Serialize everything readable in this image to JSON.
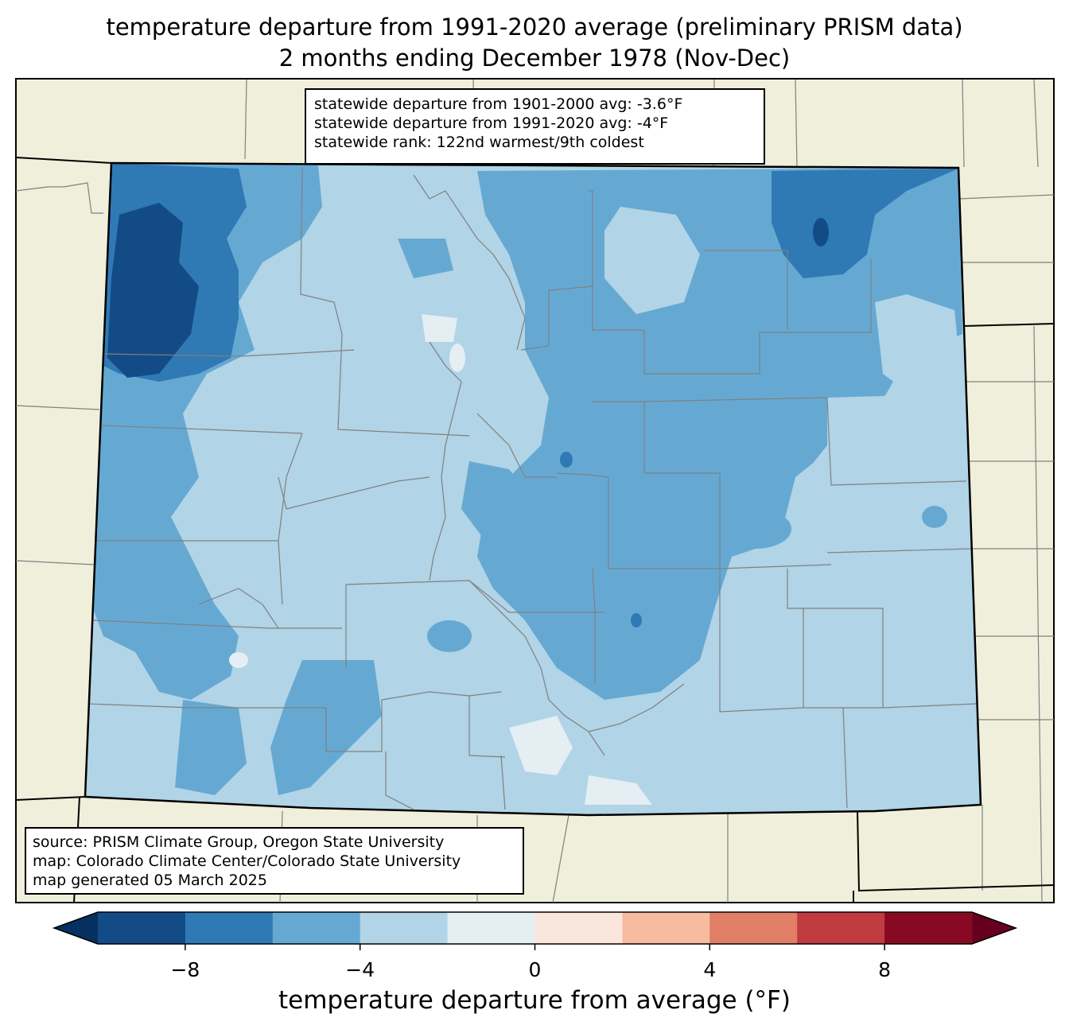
{
  "title": {
    "line1": "temperature departure from 1991-2020 average (preliminary PRISM data)",
    "line2": "2 months ending December 1978 (Nov-Dec)"
  },
  "stats": {
    "line1": "statewide departure from 1901-2000 avg: -3.6°F",
    "line2": "statewide departure from 1991-2020 avg: -4°F",
    "line3": "statewide rank: 122nd warmest/9th coldest"
  },
  "source": {
    "line1": "source: PRISM Climate Group, Oregon State University",
    "line2": "map: Colorado Climate Center/Colorado State University",
    "line3": "map generated 05 March 2025"
  },
  "colorbar": {
    "label": "temperature departure from average (°F)",
    "ticks": [
      "−8",
      "−4",
      "0",
      "4",
      "8"
    ],
    "tick_values": [
      -8,
      -4,
      0,
      4,
      8
    ],
    "range": [
      -10,
      10
    ],
    "bins": [
      -10,
      -8,
      -6,
      -4,
      -2,
      0,
      2,
      4,
      6,
      8,
      10
    ],
    "colors": [
      "#134b87",
      "#2f79b5",
      "#65a9d3",
      "#b1d4e6",
      "#e4eef3",
      "#fae6dc",
      "#f7bba0",
      "#e07e66",
      "#c03b3e",
      "#880a22"
    ],
    "under_color": "#053061",
    "over_color": "#67001f"
  },
  "map_colors": {
    "background": "#efefdc",
    "county_lines": "#808080",
    "state_border": "#000000"
  }
}
